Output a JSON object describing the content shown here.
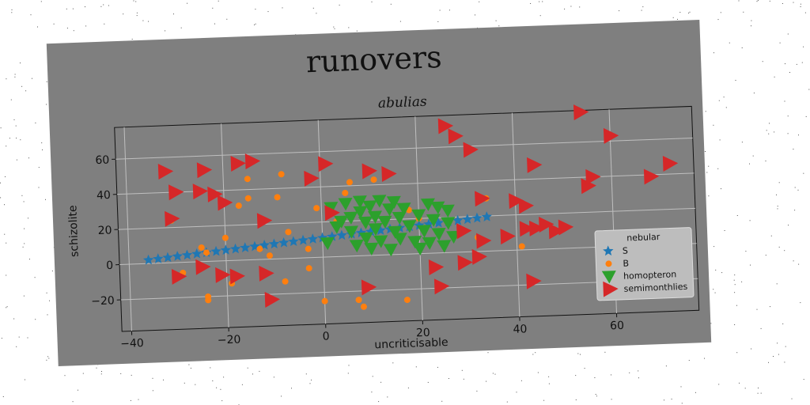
{
  "chart_data": {
    "type": "scatter",
    "title": "runovers",
    "subtitle": "abulias",
    "xlabel": "uncriticisable",
    "ylabel": "schizolite",
    "xlim": [
      -42,
      77
    ],
    "ylim": [
      -38,
      78
    ],
    "xticks": [
      -40,
      -20,
      0,
      20,
      40,
      60
    ],
    "yticks": [
      -20,
      0,
      20,
      40,
      60
    ],
    "grid": true,
    "legend": {
      "title": "nebular",
      "placement": "lower-right"
    },
    "series": [
      {
        "name": "S",
        "marker": "star",
        "color": "#1f77b4",
        "points": [
          [
            -36,
            2
          ],
          [
            -34,
            2.5
          ],
          [
            -32,
            3
          ],
          [
            -30,
            3.5
          ],
          [
            -28,
            4
          ],
          [
            -26,
            4.5
          ],
          [
            -24,
            5
          ],
          [
            -22,
            5.5
          ],
          [
            -20,
            6
          ],
          [
            -18,
            6.5
          ],
          [
            -16,
            7
          ],
          [
            -14,
            7.5
          ],
          [
            -12,
            8
          ],
          [
            -10,
            8.5
          ],
          [
            -8,
            9
          ],
          [
            -6,
            9.5
          ],
          [
            -4,
            10
          ],
          [
            -2,
            10.5
          ],
          [
            0,
            11
          ],
          [
            2,
            11.5
          ],
          [
            4,
            12
          ],
          [
            6,
            12.5
          ],
          [
            8,
            13
          ],
          [
            10,
            13.5
          ],
          [
            12,
            14
          ],
          [
            14,
            14.5
          ],
          [
            16,
            15
          ],
          [
            18,
            15.5
          ],
          [
            20,
            16
          ],
          [
            22,
            16.5
          ],
          [
            24,
            17
          ],
          [
            26,
            17.5
          ],
          [
            28,
            18
          ],
          [
            30,
            18.5
          ],
          [
            32,
            19
          ],
          [
            34,
            19.5
          ]
        ]
      },
      {
        "name": "B",
        "marker": "circle",
        "color": "#ff7f0e",
        "points": [
          [
            -29,
            -6
          ],
          [
            -25,
            8
          ],
          [
            -24,
            -22
          ],
          [
            -24,
            -20
          ],
          [
            -24,
            5
          ],
          [
            -20,
            13
          ],
          [
            -19,
            -13
          ],
          [
            -17,
            31
          ],
          [
            -15,
            35
          ],
          [
            -15,
            46
          ],
          [
            -13,
            6
          ],
          [
            -11,
            2
          ],
          [
            -9,
            35
          ],
          [
            -8,
            48
          ],
          [
            -8,
            -13
          ],
          [
            -7,
            15
          ],
          [
            -3,
            5
          ],
          [
            -3,
            -6
          ],
          [
            -1,
            28
          ],
          [
            0,
            -25
          ],
          [
            3,
            20
          ],
          [
            5,
            36
          ],
          [
            6,
            42
          ],
          [
            7,
            -25
          ],
          [
            8,
            -29
          ],
          [
            11,
            43
          ],
          [
            17,
            -26
          ],
          [
            18,
            25
          ],
          [
            20,
            20
          ],
          [
            32,
            8
          ],
          [
            41,
            2
          ],
          [
            34,
            30
          ],
          [
            -31,
            24
          ]
        ]
      },
      {
        "name": "homopteron",
        "marker": "triangle-down",
        "color": "#2ca02c",
        "points": [
          [
            1,
            8
          ],
          [
            2,
            28
          ],
          [
            3,
            17
          ],
          [
            4,
            20
          ],
          [
            5,
            30
          ],
          [
            6,
            14
          ],
          [
            6,
            22
          ],
          [
            7,
            6
          ],
          [
            8,
            25
          ],
          [
            8,
            31
          ],
          [
            9,
            10
          ],
          [
            9,
            19
          ],
          [
            10,
            28
          ],
          [
            10,
            4
          ],
          [
            11,
            15
          ],
          [
            11,
            22
          ],
          [
            12,
            31
          ],
          [
            12,
            8
          ],
          [
            13,
            19
          ],
          [
            14,
            26
          ],
          [
            14,
            3
          ],
          [
            15,
            13
          ],
          [
            15,
            30
          ],
          [
            16,
            21
          ],
          [
            16,
            9
          ],
          [
            17,
            26
          ],
          [
            18,
            16
          ],
          [
            19,
            7
          ],
          [
            20,
            22
          ],
          [
            20,
            3
          ],
          [
            21,
            13
          ],
          [
            22,
            28
          ],
          [
            22,
            6
          ],
          [
            23,
            19
          ],
          [
            24,
            11
          ],
          [
            24,
            26
          ],
          [
            25,
            4
          ],
          [
            26,
            17
          ],
          [
            26,
            24
          ],
          [
            27,
            9
          ]
        ]
      },
      {
        "name": "semimonthlies",
        "marker": "triangle-right",
        "color": "#d62728",
        "points": [
          [
            -32,
            52
          ],
          [
            -30,
            40
          ],
          [
            -31,
            25
          ],
          [
            -30,
            -8
          ],
          [
            -25,
            -3
          ],
          [
            -25,
            40
          ],
          [
            -24,
            52
          ],
          [
            -22,
            38
          ],
          [
            -21,
            -8
          ],
          [
            -20,
            33
          ],
          [
            -18,
            -9
          ],
          [
            -17,
            55
          ],
          [
            -14,
            56
          ],
          [
            -12,
            22
          ],
          [
            -12,
            -8
          ],
          [
            -11,
            -23
          ],
          [
            1,
            53
          ],
          [
            -2,
            45
          ],
          [
            2,
            25
          ],
          [
            9,
            -18
          ],
          [
            10,
            48
          ],
          [
            14,
            46
          ],
          [
            23,
            -8
          ],
          [
            24,
            -19
          ],
          [
            26,
            72
          ],
          [
            28,
            66
          ],
          [
            29,
            12
          ],
          [
            29,
            -6
          ],
          [
            31,
            58
          ],
          [
            32,
            -3
          ],
          [
            33,
            30
          ],
          [
            33,
            6
          ],
          [
            43,
            -18
          ],
          [
            40,
            28
          ],
          [
            42,
            25
          ],
          [
            44,
            48
          ],
          [
            44,
            12
          ],
          [
            46,
            14
          ],
          [
            48,
            10
          ],
          [
            50,
            12
          ],
          [
            55,
            35
          ],
          [
            56,
            40
          ],
          [
            54,
            77
          ],
          [
            60,
            63
          ],
          [
            68,
            39
          ],
          [
            72,
            46
          ],
          [
            42,
            12
          ],
          [
            38,
            8
          ]
        ]
      }
    ]
  }
}
